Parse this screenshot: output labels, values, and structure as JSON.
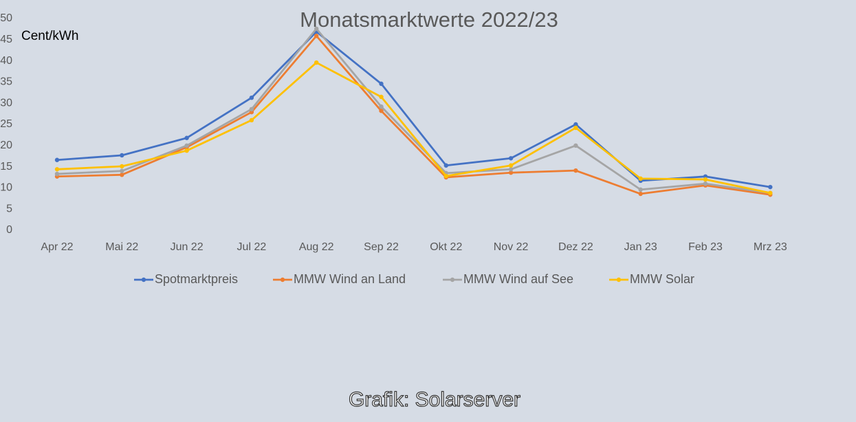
{
  "chart_data": {
    "type": "line",
    "title": "Monatsmarktwerte 2022/23",
    "y_label": "Cent/kWh",
    "source": "Grafik: Solarserver",
    "categories": [
      "Apr 22",
      "Mai 22",
      "Jun 22",
      "Jul 22",
      "Aug 22",
      "Sep 22",
      "Okt 22",
      "Nov 22",
      "Dez 22",
      "Jan 23",
      "Feb 23",
      "Mrz 23"
    ],
    "series": [
      {
        "name": "Spotmarktpreis",
        "color": "#4472c4",
        "values": [
          16.6,
          17.7,
          21.8,
          31.3,
          46.9,
          34.6,
          15.3,
          17.0,
          25.0,
          11.7,
          12.7,
          10.2
        ]
      },
      {
        "name": "MMW Wind an Land",
        "color": "#ed7d31",
        "values": [
          12.7,
          13.1,
          19.6,
          27.9,
          45.9,
          28.2,
          12.5,
          13.6,
          14.1,
          8.6,
          10.6,
          8.4
        ]
      },
      {
        "name": "MMW Wind auf See",
        "color": "#a5a5a5",
        "values": [
          13.3,
          14.0,
          20.0,
          28.6,
          47.6,
          29.2,
          13.5,
          14.4,
          20.0,
          9.6,
          11.0,
          8.8
        ]
      },
      {
        "name": "MMW Solar",
        "color": "#ffc000",
        "values": [
          14.4,
          15.1,
          18.8,
          26.0,
          39.6,
          31.5,
          12.8,
          15.3,
          24.2,
          12.2,
          12.0,
          8.8
        ]
      }
    ],
    "ylim": [
      0,
      50
    ],
    "yticks": [
      0,
      5,
      10,
      15,
      20,
      25,
      30,
      35,
      40,
      45,
      50
    ],
    "grid": false,
    "legend": "bottom"
  }
}
